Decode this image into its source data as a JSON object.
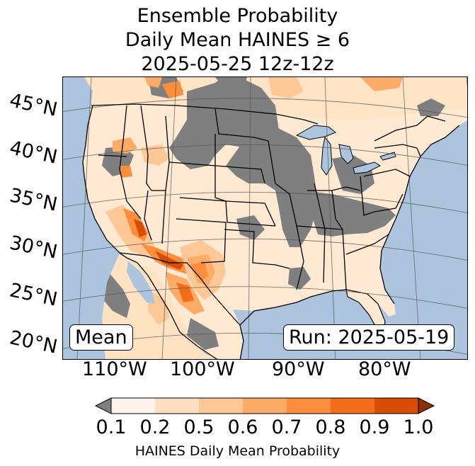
{
  "title": {
    "line1": "Ensemble Probability",
    "line2": "Daily Mean HAINES ≥ 6",
    "line3": "2025-05-25 12z-12z"
  },
  "map": {
    "latitude_labels": [
      "45°N",
      "40°N",
      "35°N",
      "30°N",
      "25°N",
      "20°N"
    ],
    "longitude_labels": [
      "110°W",
      "100°W",
      "90°W",
      "80°W"
    ],
    "stat_label": "Mean",
    "run_label": "Run: 2025-05-19",
    "colors": {
      "ocean": "#adc4de",
      "land_missing": "#7f7f7f",
      "outline": "#000000"
    }
  },
  "colorbar": {
    "tick_labels": [
      "0.1",
      "0.2",
      "0.5",
      "0.6",
      "0.7",
      "0.8",
      "0.9",
      "1.0"
    ],
    "label": "HAINES Daily Mean Probability",
    "colors": [
      "#fff4ea",
      "#fedfc1",
      "#fdc895",
      "#fdab67",
      "#fc8e3d",
      "#f36e1a",
      "#d94c04"
    ],
    "under_color": "#808080",
    "over_color": "#8c3003"
  }
}
